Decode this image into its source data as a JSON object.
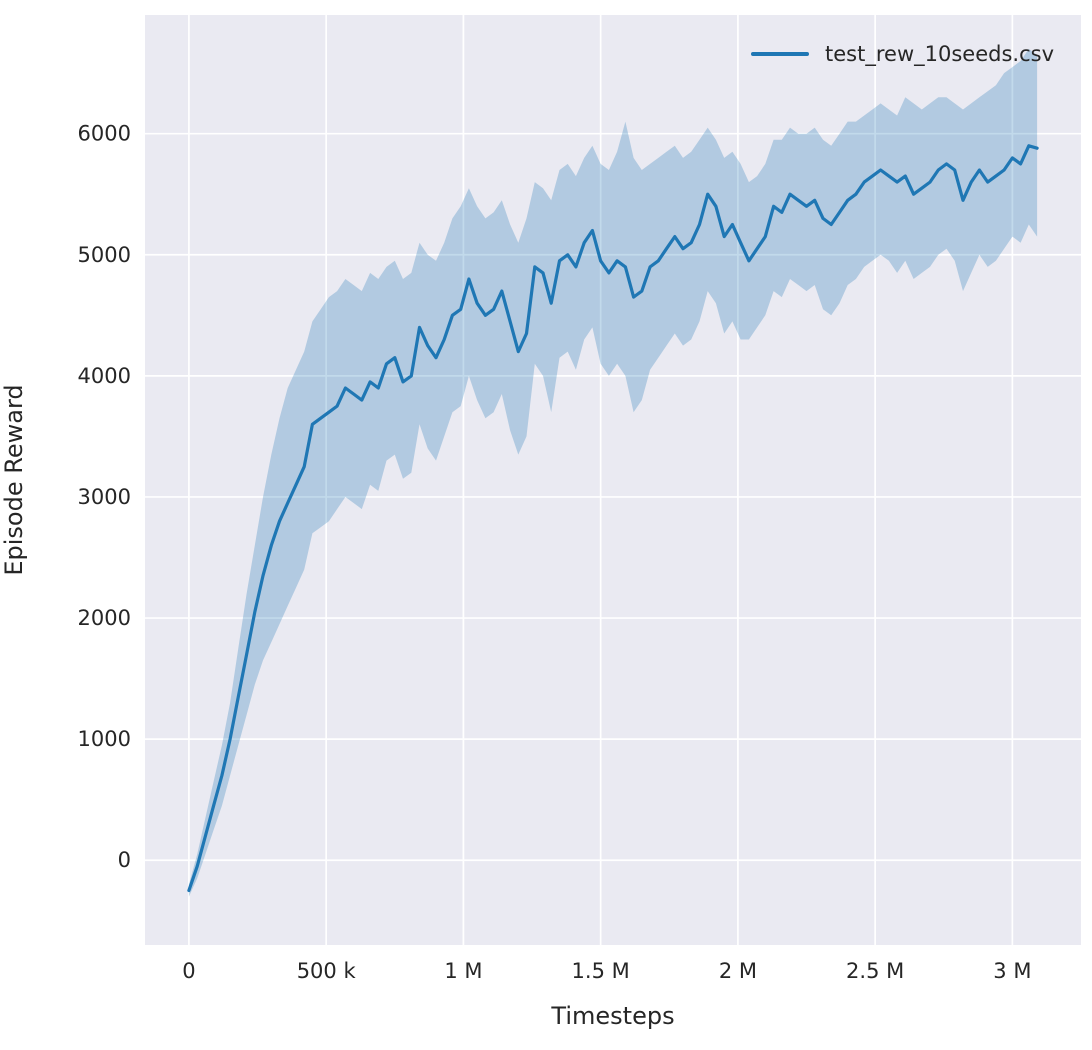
{
  "chart_data": {
    "type": "line",
    "title": "",
    "xlabel": "Timesteps",
    "ylabel": "Episode Reward",
    "legend": {
      "label": "test_rew_10seeds.csv",
      "position": "upper right"
    },
    "axes": {
      "xlim": [
        -160000,
        3250000
      ],
      "ylim": [
        -700,
        6980
      ],
      "grid": true,
      "background": "#eaeaf2",
      "grid_color": "#ffffff",
      "tick_color": "#262626",
      "x_ticks": [
        {
          "value": 0,
          "label": "0"
        },
        {
          "value": 500000,
          "label": "500 k"
        },
        {
          "value": 1000000,
          "label": "1 M"
        },
        {
          "value": 1500000,
          "label": "1.5 M"
        },
        {
          "value": 2000000,
          "label": "2 M"
        },
        {
          "value": 2500000,
          "label": "2.5 M"
        },
        {
          "value": 3000000,
          "label": "3 M"
        }
      ],
      "y_ticks": [
        {
          "value": 0,
          "label": "0"
        },
        {
          "value": 1000,
          "label": "1000"
        },
        {
          "value": 2000,
          "label": "2000"
        },
        {
          "value": 3000,
          "label": "3000"
        },
        {
          "value": 4000,
          "label": "4000"
        },
        {
          "value": 5000,
          "label": "5000"
        },
        {
          "value": 6000,
          "label": "6000"
        }
      ]
    },
    "series": [
      {
        "name": "test_rew_10seeds.csv",
        "color": "#1f77b4",
        "band_opacity": 0.27,
        "x": [
          0,
          30000,
          60000,
          90000,
          120000,
          150000,
          180000,
          210000,
          240000,
          270000,
          300000,
          330000,
          360000,
          390000,
          420000,
          450000,
          480000,
          510000,
          540000,
          570000,
          600000,
          630000,
          660000,
          690000,
          720000,
          750000,
          780000,
          810000,
          840000,
          870000,
          900000,
          930000,
          960000,
          990000,
          1020000,
          1050000,
          1080000,
          1110000,
          1140000,
          1170000,
          1200000,
          1230000,
          1260000,
          1290000,
          1320000,
          1350000,
          1380000,
          1410000,
          1440000,
          1470000,
          1500000,
          1530000,
          1560000,
          1590000,
          1620000,
          1650000,
          1680000,
          1710000,
          1740000,
          1770000,
          1800000,
          1830000,
          1860000,
          1890000,
          1920000,
          1950000,
          1980000,
          2010000,
          2040000,
          2070000,
          2100000,
          2130000,
          2160000,
          2190000,
          2220000,
          2250000,
          2280000,
          2310000,
          2340000,
          2370000,
          2400000,
          2430000,
          2460000,
          2490000,
          2520000,
          2550000,
          2580000,
          2610000,
          2640000,
          2670000,
          2700000,
          2730000,
          2760000,
          2790000,
          2820000,
          2850000,
          2880000,
          2910000,
          2940000,
          2970000,
          3000000,
          3030000,
          3060000,
          3090000
        ],
        "mean": [
          -250,
          -50,
          200,
          450,
          700,
          1000,
          1350,
          1700,
          2050,
          2350,
          2600,
          2800,
          2950,
          3100,
          3250,
          3600,
          3650,
          3700,
          3750,
          3900,
          3850,
          3800,
          3950,
          3900,
          4100,
          4150,
          3950,
          4000,
          4400,
          4250,
          4150,
          4300,
          4500,
          4550,
          4800,
          4600,
          4500,
          4550,
          4700,
          4450,
          4200,
          4350,
          4900,
          4850,
          4600,
          4950,
          5000,
          4900,
          5100,
          5200,
          4950,
          4850,
          4950,
          4900,
          4650,
          4700,
          4900,
          4950,
          5050,
          5150,
          5050,
          5100,
          5250,
          5500,
          5400,
          5150,
          5250,
          5100,
          4950,
          5050,
          5150,
          5400,
          5350,
          5500,
          5450,
          5400,
          5450,
          5300,
          5250,
          5350,
          5450,
          5500,
          5600,
          5650,
          5700,
          5650,
          5600,
          5650,
          5500,
          5550,
          5600,
          5700,
          5750,
          5700,
          5450,
          5600,
          5700,
          5600,
          5650,
          5700,
          5800,
          5750,
          5900,
          5880
        ],
        "lower": [
          -300,
          -150,
          50,
          250,
          450,
          700,
          950,
          1200,
          1450,
          1650,
          1800,
          1950,
          2100,
          2250,
          2400,
          2700,
          2750,
          2800,
          2900,
          3000,
          2950,
          2900,
          3100,
          3050,
          3300,
          3350,
          3150,
          3200,
          3600,
          3400,
          3300,
          3500,
          3700,
          3750,
          4000,
          3800,
          3650,
          3700,
          3850,
          3550,
          3350,
          3500,
          4100,
          4000,
          3700,
          4150,
          4200,
          4050,
          4300,
          4400,
          4100,
          4000,
          4100,
          4000,
          3700,
          3800,
          4050,
          4150,
          4250,
          4350,
          4250,
          4300,
          4450,
          4700,
          4600,
          4350,
          4450,
          4300,
          4300,
          4400,
          4500,
          4700,
          4650,
          4800,
          4750,
          4700,
          4750,
          4550,
          4500,
          4600,
          4750,
          4800,
          4900,
          4950,
          5000,
          4950,
          4850,
          4950,
          4800,
          4850,
          4900,
          5000,
          5050,
          4950,
          4700,
          4850,
          5000,
          4900,
          4950,
          5050,
          5150,
          5100,
          5250,
          5150
        ],
        "upper": [
          -200,
          50,
          350,
          650,
          950,
          1300,
          1750,
          2200,
          2600,
          3000,
          3350,
          3650,
          3900,
          4050,
          4200,
          4450,
          4550,
          4650,
          4700,
          4800,
          4750,
          4700,
          4850,
          4800,
          4900,
          4950,
          4800,
          4850,
          5100,
          5000,
          4950,
          5100,
          5300,
          5400,
          5550,
          5400,
          5300,
          5350,
          5450,
          5250,
          5100,
          5300,
          5600,
          5550,
          5450,
          5700,
          5750,
          5650,
          5800,
          5900,
          5750,
          5700,
          5850,
          6100,
          5800,
          5700,
          5750,
          5800,
          5850,
          5900,
          5800,
          5850,
          5950,
          6050,
          5950,
          5800,
          5850,
          5750,
          5600,
          5650,
          5750,
          5950,
          5950,
          6050,
          6000,
          6000,
          6050,
          5950,
          5900,
          6000,
          6100,
          6100,
          6150,
          6200,
          6250,
          6200,
          6150,
          6300,
          6250,
          6200,
          6250,
          6300,
          6300,
          6250,
          6200,
          6250,
          6300,
          6350,
          6400,
          6500,
          6550,
          6600,
          6700,
          6650
        ]
      }
    ]
  }
}
